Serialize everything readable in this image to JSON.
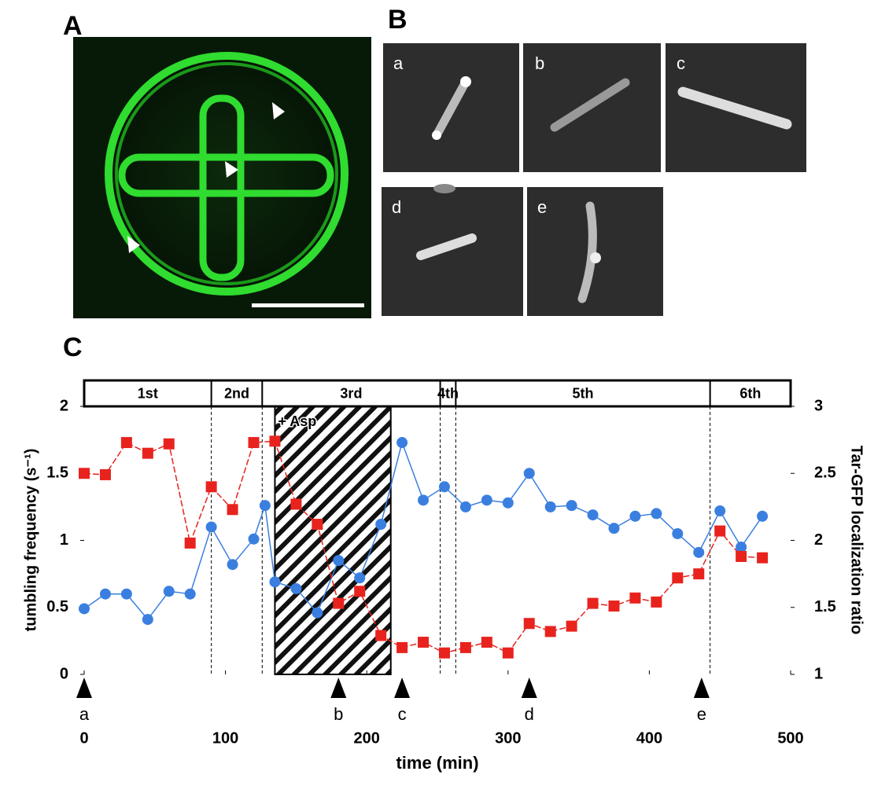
{
  "panel_labels": [
    "A",
    "B",
    "C"
  ],
  "image_labels": [
    "a",
    "b",
    "c",
    "d",
    "e"
  ],
  "chart_data": {
    "type": "line",
    "xlabel": "time (min)",
    "ylabel": "tumbling frequency (s⁻¹)",
    "y2label": "Tar-GFP localization ratio",
    "xlim": [
      0,
      500
    ],
    "xticks": [
      0,
      100,
      200,
      300,
      400,
      500
    ],
    "ylim": [
      0,
      2
    ],
    "yticks": [
      0,
      0.5,
      1,
      1.5,
      2
    ],
    "y2lim": [
      1,
      3
    ],
    "y2ticks": [
      1,
      1.5,
      2,
      2.5,
      3
    ],
    "phases": [
      {
        "label": "1st",
        "start": 0,
        "end": 90
      },
      {
        "label": "2nd",
        "start": 90,
        "end": 126
      },
      {
        "label": "3rd",
        "start": 126,
        "end": 252
      },
      {
        "label": "4th",
        "start": 252,
        "end": 263
      },
      {
        "label": "5th",
        "start": 263,
        "end": 443
      },
      {
        "label": "6th",
        "start": 443,
        "end": 500
      }
    ],
    "treatment": {
      "label": "+ Asp",
      "start": 135,
      "end": 217
    },
    "arrows": [
      {
        "label": "a",
        "x": 0
      },
      {
        "label": "b",
        "x": 180
      },
      {
        "label": "c",
        "x": 225
      },
      {
        "label": "d",
        "x": 315
      },
      {
        "label": "e",
        "x": 437
      }
    ],
    "series": [
      {
        "color": "#3a7fe0",
        "marker": "circle",
        "x": [
          0,
          15,
          30,
          45,
          60,
          75,
          90,
          105,
          120,
          128,
          135,
          150,
          165,
          180,
          195,
          210,
          225,
          240,
          255,
          270,
          285,
          300,
          315,
          330,
          345,
          360,
          375,
          390,
          405,
          420,
          435,
          450,
          465,
          480
        ],
        "values": [
          0.49,
          0.6,
          0.6,
          0.41,
          0.62,
          0.6,
          1.1,
          0.82,
          1.01,
          1.26,
          0.69,
          0.64,
          0.46,
          0.85,
          0.72,
          1.12,
          1.73,
          1.3,
          1.4,
          1.25,
          1.3,
          1.28,
          1.5,
          1.25,
          1.26,
          1.19,
          1.09,
          1.18,
          1.2,
          1.05,
          0.91,
          1.22,
          0.95,
          1.18
        ]
      },
      {
        "color": "#e8231e",
        "marker": "square",
        "axis": "y2",
        "dashed": true,
        "x": [
          0,
          15,
          30,
          45,
          60,
          75,
          90,
          105,
          120,
          135,
          150,
          165,
          180,
          195,
          210,
          225,
          240,
          255,
          270,
          285,
          300,
          315,
          330,
          345,
          360,
          375,
          390,
          405,
          420,
          435,
          450,
          465,
          480
        ],
        "values": [
          2.5,
          2.49,
          2.73,
          2.65,
          2.72,
          1.98,
          2.4,
          2.23,
          2.73,
          2.74,
          2.27,
          2.12,
          1.53,
          1.62,
          1.29,
          1.2,
          1.24,
          1.16,
          1.2,
          1.24,
          1.16,
          1.38,
          1.32,
          1.36,
          1.53,
          1.51,
          1.57,
          1.54,
          1.72,
          1.75,
          2.07,
          1.88,
          1.87
        ]
      }
    ]
  }
}
